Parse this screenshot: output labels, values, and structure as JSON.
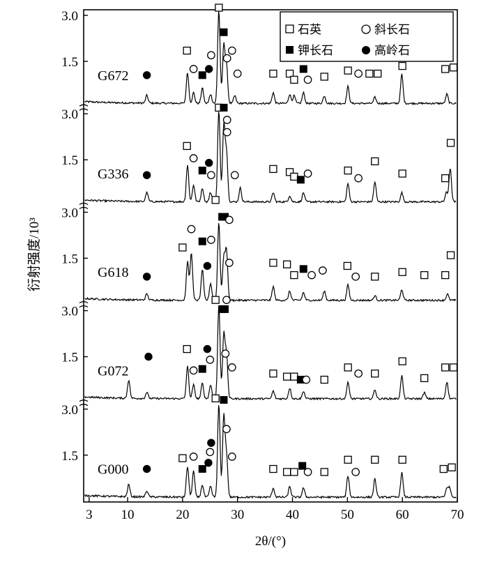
{
  "chart_data": {
    "type": "line",
    "xlabel": "2θ/(°)",
    "ylabel": "衍射强度/10³",
    "x_ticks": [
      3,
      10,
      20,
      30,
      40,
      50,
      60,
      70
    ],
    "xlim": [
      2,
      70
    ],
    "y_ticks": [
      1.5,
      3.0
    ],
    "y_tick_labels": [
      "1.5",
      "3.0"
    ],
    "legend": {
      "placement": "top-right",
      "items": [
        {
          "key": "quartz",
          "label": "石英",
          "marker": "open-square"
        },
        {
          "key": "plagioclase",
          "label": "斜长石",
          "marker": "open-circle"
        },
        {
          "key": "kfeldspar",
          "label": "钾长石",
          "marker": "filled-square"
        },
        {
          "key": "kaolinite",
          "label": "高岭石",
          "marker": "filled-circle"
        }
      ]
    },
    "panels": [
      {
        "sample": "G672",
        "peaks": [
          [
            13.5,
            0.25
          ],
          [
            20.9,
            1.0
          ],
          [
            22.0,
            0.35
          ],
          [
            23.6,
            0.5
          ],
          [
            25.1,
            0.3
          ],
          [
            26.6,
            3.05
          ],
          [
            27.5,
            1.9
          ],
          [
            28.0,
            1.2
          ],
          [
            29.5,
            0.25
          ],
          [
            36.5,
            0.35
          ],
          [
            39.5,
            0.3
          ],
          [
            40.3,
            0.25
          ],
          [
            42.0,
            0.35
          ],
          [
            45.8,
            0.25
          ],
          [
            50.1,
            0.55
          ],
          [
            55.0,
            0.2
          ],
          [
            59.9,
            0.95
          ],
          [
            68.1,
            0.3
          ]
        ],
        "markers": [
          {
            "type": "kaolinite",
            "x": 13.5,
            "y": 1.05
          },
          {
            "type": "quartz",
            "x": 20.8,
            "y": 1.85
          },
          {
            "type": "plagioclase",
            "x": 22.0,
            "y": 1.25
          },
          {
            "type": "kfeldspar",
            "x": 23.6,
            "y": 1.05
          },
          {
            "type": "kaolinite",
            "x": 24.8,
            "y": 1.25
          },
          {
            "type": "plagioclase",
            "x": 25.2,
            "y": 1.7
          },
          {
            "type": "quartz",
            "x": 26.6,
            "y": 3.25
          },
          {
            "type": "kfeldspar",
            "x": 27.5,
            "y": 2.45
          },
          {
            "type": "plagioclase",
            "x": 28.1,
            "y": 1.6
          },
          {
            "type": "plagioclase",
            "x": 29.0,
            "y": 1.85
          },
          {
            "type": "plagioclase",
            "x": 30.0,
            "y": 1.1
          },
          {
            "type": "quartz",
            "x": 36.5,
            "y": 1.1
          },
          {
            "type": "quartz",
            "x": 39.5,
            "y": 1.1
          },
          {
            "type": "quartz",
            "x": 40.3,
            "y": 0.9
          },
          {
            "type": "kfeldspar",
            "x": 42.0,
            "y": 1.25
          },
          {
            "type": "plagioclase",
            "x": 42.8,
            "y": 0.9
          },
          {
            "type": "quartz",
            "x": 45.8,
            "y": 1.0
          },
          {
            "type": "quartz",
            "x": 50.1,
            "y": 1.2
          },
          {
            "type": "plagioclase",
            "x": 52.0,
            "y": 1.1
          },
          {
            "type": "quartz",
            "x": 54.0,
            "y": 1.1
          },
          {
            "type": "quartz",
            "x": 55.5,
            "y": 1.1
          },
          {
            "type": "quartz",
            "x": 60.0,
            "y": 1.35
          },
          {
            "type": "quartz",
            "x": 67.8,
            "y": 1.25
          },
          {
            "type": "quartz",
            "x": 69.3,
            "y": 1.3
          }
        ]
      },
      {
        "sample": "G336",
        "peaks": [
          [
            13.5,
            0.3
          ],
          [
            20.9,
            1.2
          ],
          [
            22.0,
            0.55
          ],
          [
            23.6,
            0.45
          ],
          [
            25.1,
            0.3
          ],
          [
            26.6,
            3.0
          ],
          [
            27.5,
            2.5
          ],
          [
            28.0,
            1.6
          ],
          [
            30.5,
            0.45
          ],
          [
            36.5,
            0.3
          ],
          [
            39.5,
            0.2
          ],
          [
            42.0,
            0.3
          ],
          [
            50.1,
            0.6
          ],
          [
            55.0,
            0.65
          ],
          [
            59.9,
            0.3
          ],
          [
            68.0,
            0.3
          ],
          [
            68.7,
            1.1
          ]
        ],
        "markers": [
          {
            "type": "kaolinite",
            "x": 13.5,
            "y": 1.0
          },
          {
            "type": "quartz",
            "x": 20.8,
            "y": 1.95
          },
          {
            "type": "plagioclase",
            "x": 22.0,
            "y": 1.55
          },
          {
            "type": "kfeldspar",
            "x": 23.6,
            "y": 1.15
          },
          {
            "type": "kaolinite",
            "x": 24.8,
            "y": 1.4
          },
          {
            "type": "plagioclase",
            "x": 25.2,
            "y": 1.0
          },
          {
            "type": "quartz",
            "x": 26.6,
            "y": 3.2
          },
          {
            "type": "kfeldspar",
            "x": 27.5,
            "y": 3.2
          },
          {
            "type": "plagioclase",
            "x": 28.1,
            "y": 2.8
          },
          {
            "type": "plagioclase",
            "x": 28.1,
            "y": 2.4
          },
          {
            "type": "plagioclase",
            "x": 29.5,
            "y": 1.0
          },
          {
            "type": "quartz",
            "x": 36.5,
            "y": 1.2
          },
          {
            "type": "quartz",
            "x": 39.5,
            "y": 1.1
          },
          {
            "type": "quartz",
            "x": 40.3,
            "y": 0.95
          },
          {
            "type": "kfeldspar",
            "x": 41.5,
            "y": 0.85
          },
          {
            "type": "plagioclase",
            "x": 42.8,
            "y": 1.05
          },
          {
            "type": "quartz",
            "x": 50.1,
            "y": 1.15
          },
          {
            "type": "plagioclase",
            "x": 52.0,
            "y": 0.9
          },
          {
            "type": "quartz",
            "x": 55.0,
            "y": 1.45
          },
          {
            "type": "quartz",
            "x": 60.0,
            "y": 1.05
          },
          {
            "type": "quartz",
            "x": 67.8,
            "y": 0.9
          },
          {
            "type": "quartz",
            "x": 68.8,
            "y": 2.05
          }
        ]
      },
      {
        "sample": "G618",
        "peaks": [
          [
            13.5,
            0.2
          ],
          [
            20.9,
            1.25
          ],
          [
            21.6,
            1.55
          ],
          [
            23.6,
            1.0
          ],
          [
            25.1,
            0.55
          ],
          [
            26.6,
            2.55
          ],
          [
            27.5,
            1.4
          ],
          [
            28.0,
            1.6
          ],
          [
            36.5,
            0.45
          ],
          [
            39.5,
            0.3
          ],
          [
            42.0,
            0.25
          ],
          [
            45.8,
            0.3
          ],
          [
            50.1,
            0.5
          ],
          [
            55.0,
            0.15
          ],
          [
            59.9,
            0.35
          ],
          [
            68.2,
            0.2
          ]
        ],
        "markers": [
          {
            "type": "kaolinite",
            "x": 13.5,
            "y": 0.9
          },
          {
            "type": "quartz",
            "x": 20.0,
            "y": 1.85
          },
          {
            "type": "plagioclase",
            "x": 21.6,
            "y": 2.45
          },
          {
            "type": "kfeldspar",
            "x": 23.6,
            "y": 2.05
          },
          {
            "type": "kaolinite",
            "x": 24.5,
            "y": 1.25
          },
          {
            "type": "plagioclase",
            "x": 25.2,
            "y": 2.1
          },
          {
            "type": "quartz",
            "x": 26.0,
            "y": 3.4
          },
          {
            "type": "kfeldspar",
            "x": 27.2,
            "y": 2.85
          },
          {
            "type": "kfeldspar",
            "x": 27.7,
            "y": 2.85
          },
          {
            "type": "plagioclase",
            "x": 28.5,
            "y": 2.75
          },
          {
            "type": "plagioclase",
            "x": 28.5,
            "y": 1.35
          },
          {
            "type": "quartz",
            "x": 36.5,
            "y": 1.35
          },
          {
            "type": "quartz",
            "x": 39.0,
            "y": 1.3
          },
          {
            "type": "quartz",
            "x": 40.3,
            "y": 0.95
          },
          {
            "type": "kfeldspar",
            "x": 42.0,
            "y": 1.15
          },
          {
            "type": "plagioclase",
            "x": 43.5,
            "y": 0.95
          },
          {
            "type": "plagioclase",
            "x": 45.5,
            "y": 1.1
          },
          {
            "type": "quartz",
            "x": 50.0,
            "y": 1.25
          },
          {
            "type": "plagioclase",
            "x": 51.5,
            "y": 0.9
          },
          {
            "type": "quartz",
            "x": 55.0,
            "y": 0.9
          },
          {
            "type": "quartz",
            "x": 60.0,
            "y": 1.05
          },
          {
            "type": "quartz",
            "x": 64.0,
            "y": 0.95
          },
          {
            "type": "quartz",
            "x": 67.8,
            "y": 0.95
          },
          {
            "type": "quartz",
            "x": 68.8,
            "y": 1.6
          }
        ]
      },
      {
        "sample": "G072",
        "peaks": [
          [
            10.2,
            0.6
          ],
          [
            13.5,
            0.2
          ],
          [
            20.9,
            1.05
          ],
          [
            22.0,
            0.45
          ],
          [
            23.6,
            0.5
          ],
          [
            25.1,
            0.45
          ],
          [
            26.6,
            3.05
          ],
          [
            27.5,
            2.1
          ],
          [
            28.0,
            1.4
          ],
          [
            36.5,
            0.25
          ],
          [
            39.5,
            0.35
          ],
          [
            42.0,
            0.25
          ],
          [
            50.1,
            0.55
          ],
          [
            55.0,
            0.3
          ],
          [
            59.9,
            0.75
          ],
          [
            64.0,
            0.2
          ],
          [
            68.1,
            0.55
          ]
        ],
        "markers": [
          {
            "type": "kaolinite",
            "x": 13.8,
            "y": 1.5
          },
          {
            "type": "quartz",
            "x": 20.8,
            "y": 1.75
          },
          {
            "type": "plagioclase",
            "x": 22.0,
            "y": 1.05
          },
          {
            "type": "kfeldspar",
            "x": 23.6,
            "y": 1.1
          },
          {
            "type": "kaolinite",
            "x": 24.5,
            "y": 1.75
          },
          {
            "type": "plagioclase",
            "x": 25.0,
            "y": 1.4
          },
          {
            "type": "quartz",
            "x": 26.0,
            "y": 3.35
          },
          {
            "type": "kfeldspar",
            "x": 27.2,
            "y": 3.05
          },
          {
            "type": "kfeldspar",
            "x": 27.7,
            "y": 3.05
          },
          {
            "type": "plagioclase",
            "x": 28.0,
            "y": 3.35
          },
          {
            "type": "plagioclase",
            "x": 27.8,
            "y": 1.6
          },
          {
            "type": "plagioclase",
            "x": 29.0,
            "y": 1.15
          },
          {
            "type": "quartz",
            "x": 36.5,
            "y": 0.95
          },
          {
            "type": "quartz",
            "x": 39.0,
            "y": 0.85
          },
          {
            "type": "quartz",
            "x": 40.3,
            "y": 0.85
          },
          {
            "type": "kfeldspar",
            "x": 41.5,
            "y": 0.75
          },
          {
            "type": "plagioclase",
            "x": 42.5,
            "y": 0.75
          },
          {
            "type": "quartz",
            "x": 45.8,
            "y": 0.75
          },
          {
            "type": "quartz",
            "x": 50.1,
            "y": 1.15
          },
          {
            "type": "plagioclase",
            "x": 52.0,
            "y": 0.95
          },
          {
            "type": "quartz",
            "x": 55.0,
            "y": 0.95
          },
          {
            "type": "quartz",
            "x": 60.0,
            "y": 1.35
          },
          {
            "type": "quartz",
            "x": 64.0,
            "y": 0.8
          },
          {
            "type": "quartz",
            "x": 67.8,
            "y": 1.15
          },
          {
            "type": "quartz",
            "x": 69.3,
            "y": 1.15
          }
        ]
      },
      {
        "sample": "G000",
        "peaks": [
          [
            10.2,
            0.4
          ],
          [
            13.5,
            0.2
          ],
          [
            20.9,
            1.0
          ],
          [
            22.0,
            0.85
          ],
          [
            23.6,
            0.4
          ],
          [
            25.1,
            0.35
          ],
          [
            26.6,
            3.05
          ],
          [
            27.5,
            2.65
          ],
          [
            28.0,
            1.35
          ],
          [
            36.5,
            0.3
          ],
          [
            39.5,
            0.35
          ],
          [
            42.0,
            0.3
          ],
          [
            50.1,
            0.7
          ],
          [
            55.0,
            0.6
          ],
          [
            59.9,
            0.8
          ],
          [
            68.1,
            0.3
          ],
          [
            68.6,
            0.3
          ]
        ],
        "markers": [
          {
            "type": "kaolinite",
            "x": 13.5,
            "y": 1.05
          },
          {
            "type": "quartz",
            "x": 20.0,
            "y": 1.4
          },
          {
            "type": "plagioclase",
            "x": 22.0,
            "y": 1.45
          },
          {
            "type": "kfeldspar",
            "x": 23.6,
            "y": 1.05
          },
          {
            "type": "kaolinite",
            "x": 24.7,
            "y": 1.25
          },
          {
            "type": "plagioclase",
            "x": 25.0,
            "y": 1.6
          },
          {
            "type": "kaolinite",
            "x": 25.2,
            "y": 1.9
          },
          {
            "type": "quartz",
            "x": 26.0,
            "y": 3.35
          },
          {
            "type": "kfeldspar",
            "x": 27.5,
            "y": 3.3
          },
          {
            "type": "plagioclase",
            "x": 28.0,
            "y": 2.35
          },
          {
            "type": "plagioclase",
            "x": 29.0,
            "y": 1.45
          },
          {
            "type": "quartz",
            "x": 36.5,
            "y": 1.05
          },
          {
            "type": "quartz",
            "x": 39.0,
            "y": 0.95
          },
          {
            "type": "quartz",
            "x": 40.3,
            "y": 0.95
          },
          {
            "type": "kfeldspar",
            "x": 41.8,
            "y": 1.15
          },
          {
            "type": "plagioclase",
            "x": 42.8,
            "y": 0.95
          },
          {
            "type": "quartz",
            "x": 45.8,
            "y": 0.95
          },
          {
            "type": "quartz",
            "x": 50.1,
            "y": 1.35
          },
          {
            "type": "plagioclase",
            "x": 51.5,
            "y": 0.95
          },
          {
            "type": "quartz",
            "x": 55.0,
            "y": 1.35
          },
          {
            "type": "quartz",
            "x": 60.0,
            "y": 1.35
          },
          {
            "type": "quartz",
            "x": 67.5,
            "y": 1.05
          },
          {
            "type": "quartz",
            "x": 69.0,
            "y": 1.1
          }
        ]
      }
    ]
  }
}
